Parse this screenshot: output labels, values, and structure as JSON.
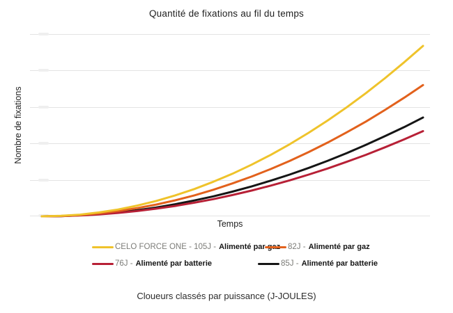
{
  "chart_data": {
    "type": "line",
    "title": "Quantité de fixations au fil du temps",
    "xlabel": "Temps",
    "ylabel": "Nombre de fixations",
    "caption": "Cloueurs classés par puissance (J-JOULES)",
    "legend_position": "bottom",
    "grid": "horizontal",
    "grid_color": "#e3e3e3",
    "y_tick_labels_visible": false,
    "x_tick_labels_visible": false,
    "x_range_normalized": [
      0,
      1
    ],
    "y_unit": "relative (100 = max of 105J series)",
    "x": [
      0,
      0.05,
      0.1,
      0.15,
      0.2,
      0.25,
      0.3,
      0.35,
      0.4,
      0.45,
      0.5,
      0.55,
      0.6,
      0.65,
      0.7,
      0.75,
      0.8,
      0.85,
      0.9,
      0.95,
      1
    ],
    "series": [
      {
        "name": "CELO FORCE ONE - 105J",
        "legend_prefix": "CELO FORCE ONE - 105J -",
        "legend_bold": "Alimenté par gaz",
        "power_joules": 105,
        "color": "#EFC32B",
        "values": [
          0,
          0.3,
          1,
          2.3,
          4,
          6.3,
          9,
          12.3,
          16,
          20.3,
          25,
          30.3,
          36,
          42.3,
          49,
          56.3,
          64,
          72.3,
          81,
          90.3,
          100
        ]
      },
      {
        "name": "82J",
        "legend_prefix": "82J -",
        "legend_bold": "Alimenté par gaz",
        "power_joules": 82,
        "color": "#E2611C",
        "values": [
          0,
          0.2,
          0.8,
          1.7,
          3.1,
          4.8,
          6.9,
          9.4,
          12.3,
          15.6,
          19.3,
          23.3,
          27.7,
          32.5,
          37.7,
          43.3,
          49.3,
          55.6,
          62.4,
          69.5,
          77
        ]
      },
      {
        "name": "76J",
        "legend_prefix": "76J -",
        "legend_bold": "Alimenté par batterie",
        "power_joules": 76,
        "color": "#B72036",
        "values": [
          0,
          0.1,
          0.5,
          1.1,
          2,
          3.1,
          4.5,
          6.1,
          8,
          10.1,
          12.5,
          15.1,
          18,
          21.1,
          24.5,
          28.1,
          32,
          36.1,
          40.5,
          45.1,
          50
        ]
      },
      {
        "name": "85J",
        "legend_prefix": "85J -",
        "legend_bold": "Alimenté par batterie",
        "power_joules": 85,
        "color": "#151515",
        "values": [
          0,
          0.1,
          0.6,
          1.3,
          2.3,
          3.6,
          5.2,
          7.1,
          9.3,
          11.7,
          14.5,
          17.5,
          20.9,
          24.5,
          28.4,
          32.6,
          37.1,
          41.9,
          47,
          52.3,
          58
        ]
      }
    ]
  }
}
